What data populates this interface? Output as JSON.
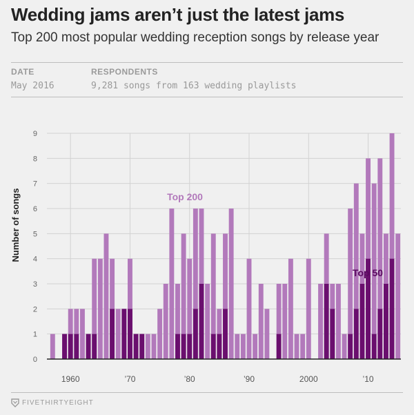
{
  "header": {
    "title": "Wedding jams aren’t just the latest jams",
    "subtitle": "Top 200 most popular wedding reception songs by release year"
  },
  "meta": {
    "date_label": "DATE",
    "date_value": "May 2016",
    "respondents_label": "RESPONDENTS",
    "respondents_value": "9,281 songs from 163 wedding playlists"
  },
  "footer": {
    "brand": "FIVETHIRTYEIGHT",
    "logo_icon": "fivethirtyeight-logo-icon"
  },
  "colors": {
    "top200": "#b279bb",
    "top50": "#6a0f6e",
    "top200_label": "#b279bb",
    "top50_label": "#5a0a60",
    "grid": "#d2d2d2",
    "axis": "#222222"
  },
  "chart_data": {
    "type": "bar",
    "title": "",
    "xlabel": "",
    "ylabel": "Number of songs",
    "ylim": [
      0,
      9
    ],
    "y_ticks": [
      0,
      1,
      2,
      3,
      4,
      5,
      6,
      7,
      8,
      9
    ],
    "x_ticks": [
      {
        "year": 1960,
        "label": "1960"
      },
      {
        "year": 1970,
        "label": "’70"
      },
      {
        "year": 1980,
        "label": "’80"
      },
      {
        "year": 1990,
        "label": "’90"
      },
      {
        "year": 2000,
        "label": "2000"
      },
      {
        "year": 2010,
        "label": "’10"
      }
    ],
    "x": [
      1957,
      1958,
      1959,
      1960,
      1961,
      1962,
      1963,
      1964,
      1965,
      1966,
      1967,
      1968,
      1969,
      1970,
      1971,
      1972,
      1973,
      1974,
      1975,
      1976,
      1977,
      1978,
      1979,
      1980,
      1981,
      1982,
      1983,
      1984,
      1985,
      1986,
      1987,
      1988,
      1989,
      1990,
      1991,
      1992,
      1993,
      1994,
      1995,
      1996,
      1997,
      1998,
      1999,
      2000,
      2001,
      2002,
      2003,
      2004,
      2005,
      2006,
      2007,
      2008,
      2009,
      2010,
      2011,
      2012,
      2013,
      2014,
      2015
    ],
    "series": [
      {
        "name": "Top 200",
        "values": [
          1,
          0,
          1,
          2,
          2,
          2,
          1,
          4,
          4,
          5,
          4,
          2,
          2,
          4,
          1,
          1,
          1,
          1,
          2,
          3,
          6,
          3,
          5,
          4,
          6,
          6,
          3,
          5,
          2,
          5,
          6,
          1,
          1,
          4,
          1,
          3,
          2,
          0,
          3,
          3,
          4,
          1,
          1,
          4,
          0,
          3,
          5,
          3,
          3,
          1,
          6,
          7,
          5,
          8,
          7,
          8,
          5,
          9,
          5
        ]
      },
      {
        "name": "Top 50",
        "values": [
          0,
          0,
          1,
          1,
          1,
          0,
          1,
          1,
          0,
          0,
          2,
          0,
          2,
          2,
          1,
          1,
          0,
          0,
          0,
          0,
          0,
          1,
          1,
          1,
          2,
          3,
          0,
          1,
          1,
          2,
          0,
          0,
          0,
          0,
          0,
          0,
          0,
          0,
          1,
          0,
          0,
          0,
          0,
          0,
          0,
          0,
          3,
          2,
          0,
          0,
          1,
          2,
          3,
          4,
          1,
          2,
          3,
          4,
          0
        ]
      }
    ],
    "annotations": [
      {
        "text": "Top 200",
        "series": "Top 200"
      },
      {
        "text": "Top 50",
        "series": "Top 50"
      }
    ]
  }
}
